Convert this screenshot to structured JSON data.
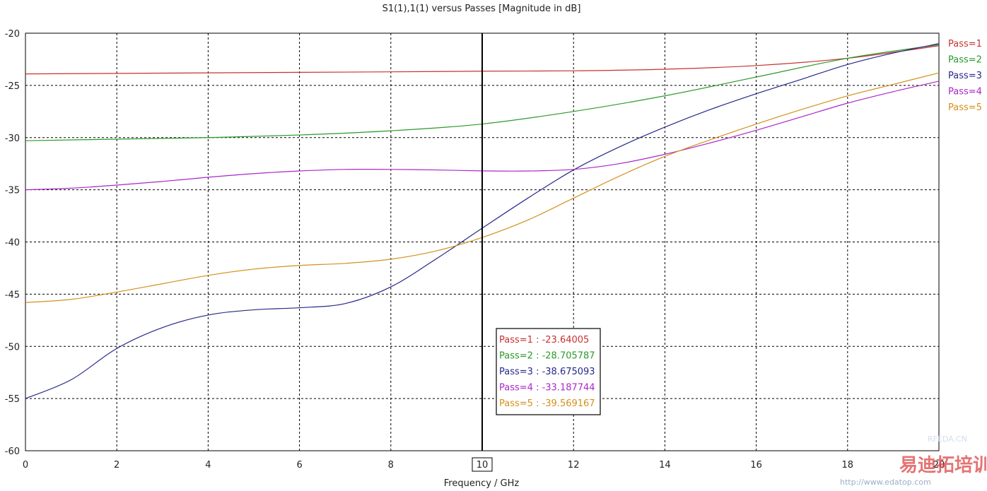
{
  "chart_data": {
    "type": "line",
    "title": "S1(1),1(1) versus Passes [Magnitude in dB]",
    "xlabel": "Frequency / GHz",
    "ylabel": "",
    "xlim": [
      0,
      20
    ],
    "ylim": [
      -60,
      -20
    ],
    "xticks": [
      0,
      2,
      4,
      6,
      8,
      10,
      12,
      14,
      16,
      18,
      20
    ],
    "yticks": [
      -20,
      -25,
      -30,
      -35,
      -40,
      -45,
      -50,
      -55,
      -60
    ],
    "xtick_labels": [
      "0",
      "2",
      "4",
      "6",
      "8",
      "10",
      "12",
      "14",
      "16",
      "18",
      "20"
    ],
    "ytick_labels": [
      "-20",
      "-25",
      "-30",
      "-35",
      "-40",
      "-45",
      "-50",
      "-55",
      "-60"
    ],
    "grid": true,
    "legend_position": "right",
    "marker": {
      "x": 10,
      "x_label": "10",
      "readout": [
        "Pass=1 : -23.64005",
        "Pass=2 : -28.705787",
        "Pass=3 : -38.675093",
        "Pass=4 : -33.187744",
        "Pass=5 : -39.569167"
      ]
    },
    "series": [
      {
        "name": "Pass=1",
        "color": "#c83232",
        "x": [
          0,
          2,
          4,
          6,
          8,
          10,
          12,
          14,
          16,
          18,
          20
        ],
        "y": [
          -23.9,
          -23.85,
          -23.8,
          -23.75,
          -23.7,
          -23.64,
          -23.6,
          -23.45,
          -23.1,
          -22.4,
          -21.2
        ]
      },
      {
        "name": "Pass=2",
        "color": "#2a9a2a",
        "x": [
          0,
          2,
          4,
          6,
          8,
          10,
          12,
          14,
          16,
          18,
          20
        ],
        "y": [
          -30.3,
          -30.15,
          -30.0,
          -29.75,
          -29.35,
          -28.7,
          -27.5,
          -26.0,
          -24.2,
          -22.4,
          -21.1
        ]
      },
      {
        "name": "Pass=3",
        "color": "#28288a",
        "x": [
          0,
          1,
          2,
          3,
          4,
          5,
          6,
          7,
          8,
          9,
          10,
          11,
          12,
          13,
          14,
          15,
          16,
          17,
          18,
          19,
          20
        ],
        "y": [
          -55.0,
          -53.2,
          -50.2,
          -48.2,
          -47.0,
          -46.5,
          -46.3,
          -45.9,
          -44.3,
          -41.6,
          -38.68,
          -35.8,
          -33.1,
          -30.9,
          -29.0,
          -27.3,
          -25.8,
          -24.4,
          -23.0,
          -21.9,
          -21.0
        ]
      },
      {
        "name": "Pass=4",
        "color": "#aa28c8",
        "x": [
          0,
          1,
          2,
          3,
          4,
          5,
          6,
          7,
          8,
          9,
          10,
          11,
          12,
          13,
          14,
          15,
          16,
          17,
          18,
          19,
          20
        ],
        "y": [
          -35.0,
          -34.85,
          -34.55,
          -34.2,
          -33.8,
          -33.45,
          -33.2,
          -33.05,
          -33.05,
          -33.1,
          -33.19,
          -33.2,
          -33.05,
          -32.5,
          -31.6,
          -30.5,
          -29.3,
          -28.0,
          -26.7,
          -25.6,
          -24.6
        ]
      },
      {
        "name": "Pass=5",
        "color": "#d4901c",
        "x": [
          0,
          1,
          2,
          3,
          4,
          5,
          6,
          7,
          8,
          9,
          10,
          11,
          12,
          13,
          14,
          15,
          16,
          17,
          18,
          19,
          20
        ],
        "y": [
          -45.8,
          -45.5,
          -44.8,
          -44.0,
          -43.2,
          -42.6,
          -42.25,
          -42.05,
          -41.65,
          -40.85,
          -39.57,
          -37.9,
          -35.8,
          -33.7,
          -31.8,
          -30.2,
          -28.7,
          -27.3,
          -26.0,
          -24.9,
          -23.8
        ]
      }
    ]
  },
  "watermark": {
    "brand_text": "易迪拓培训",
    "url_text": "http://www.edatop.com",
    "site_text": "RFEDA.CN"
  }
}
